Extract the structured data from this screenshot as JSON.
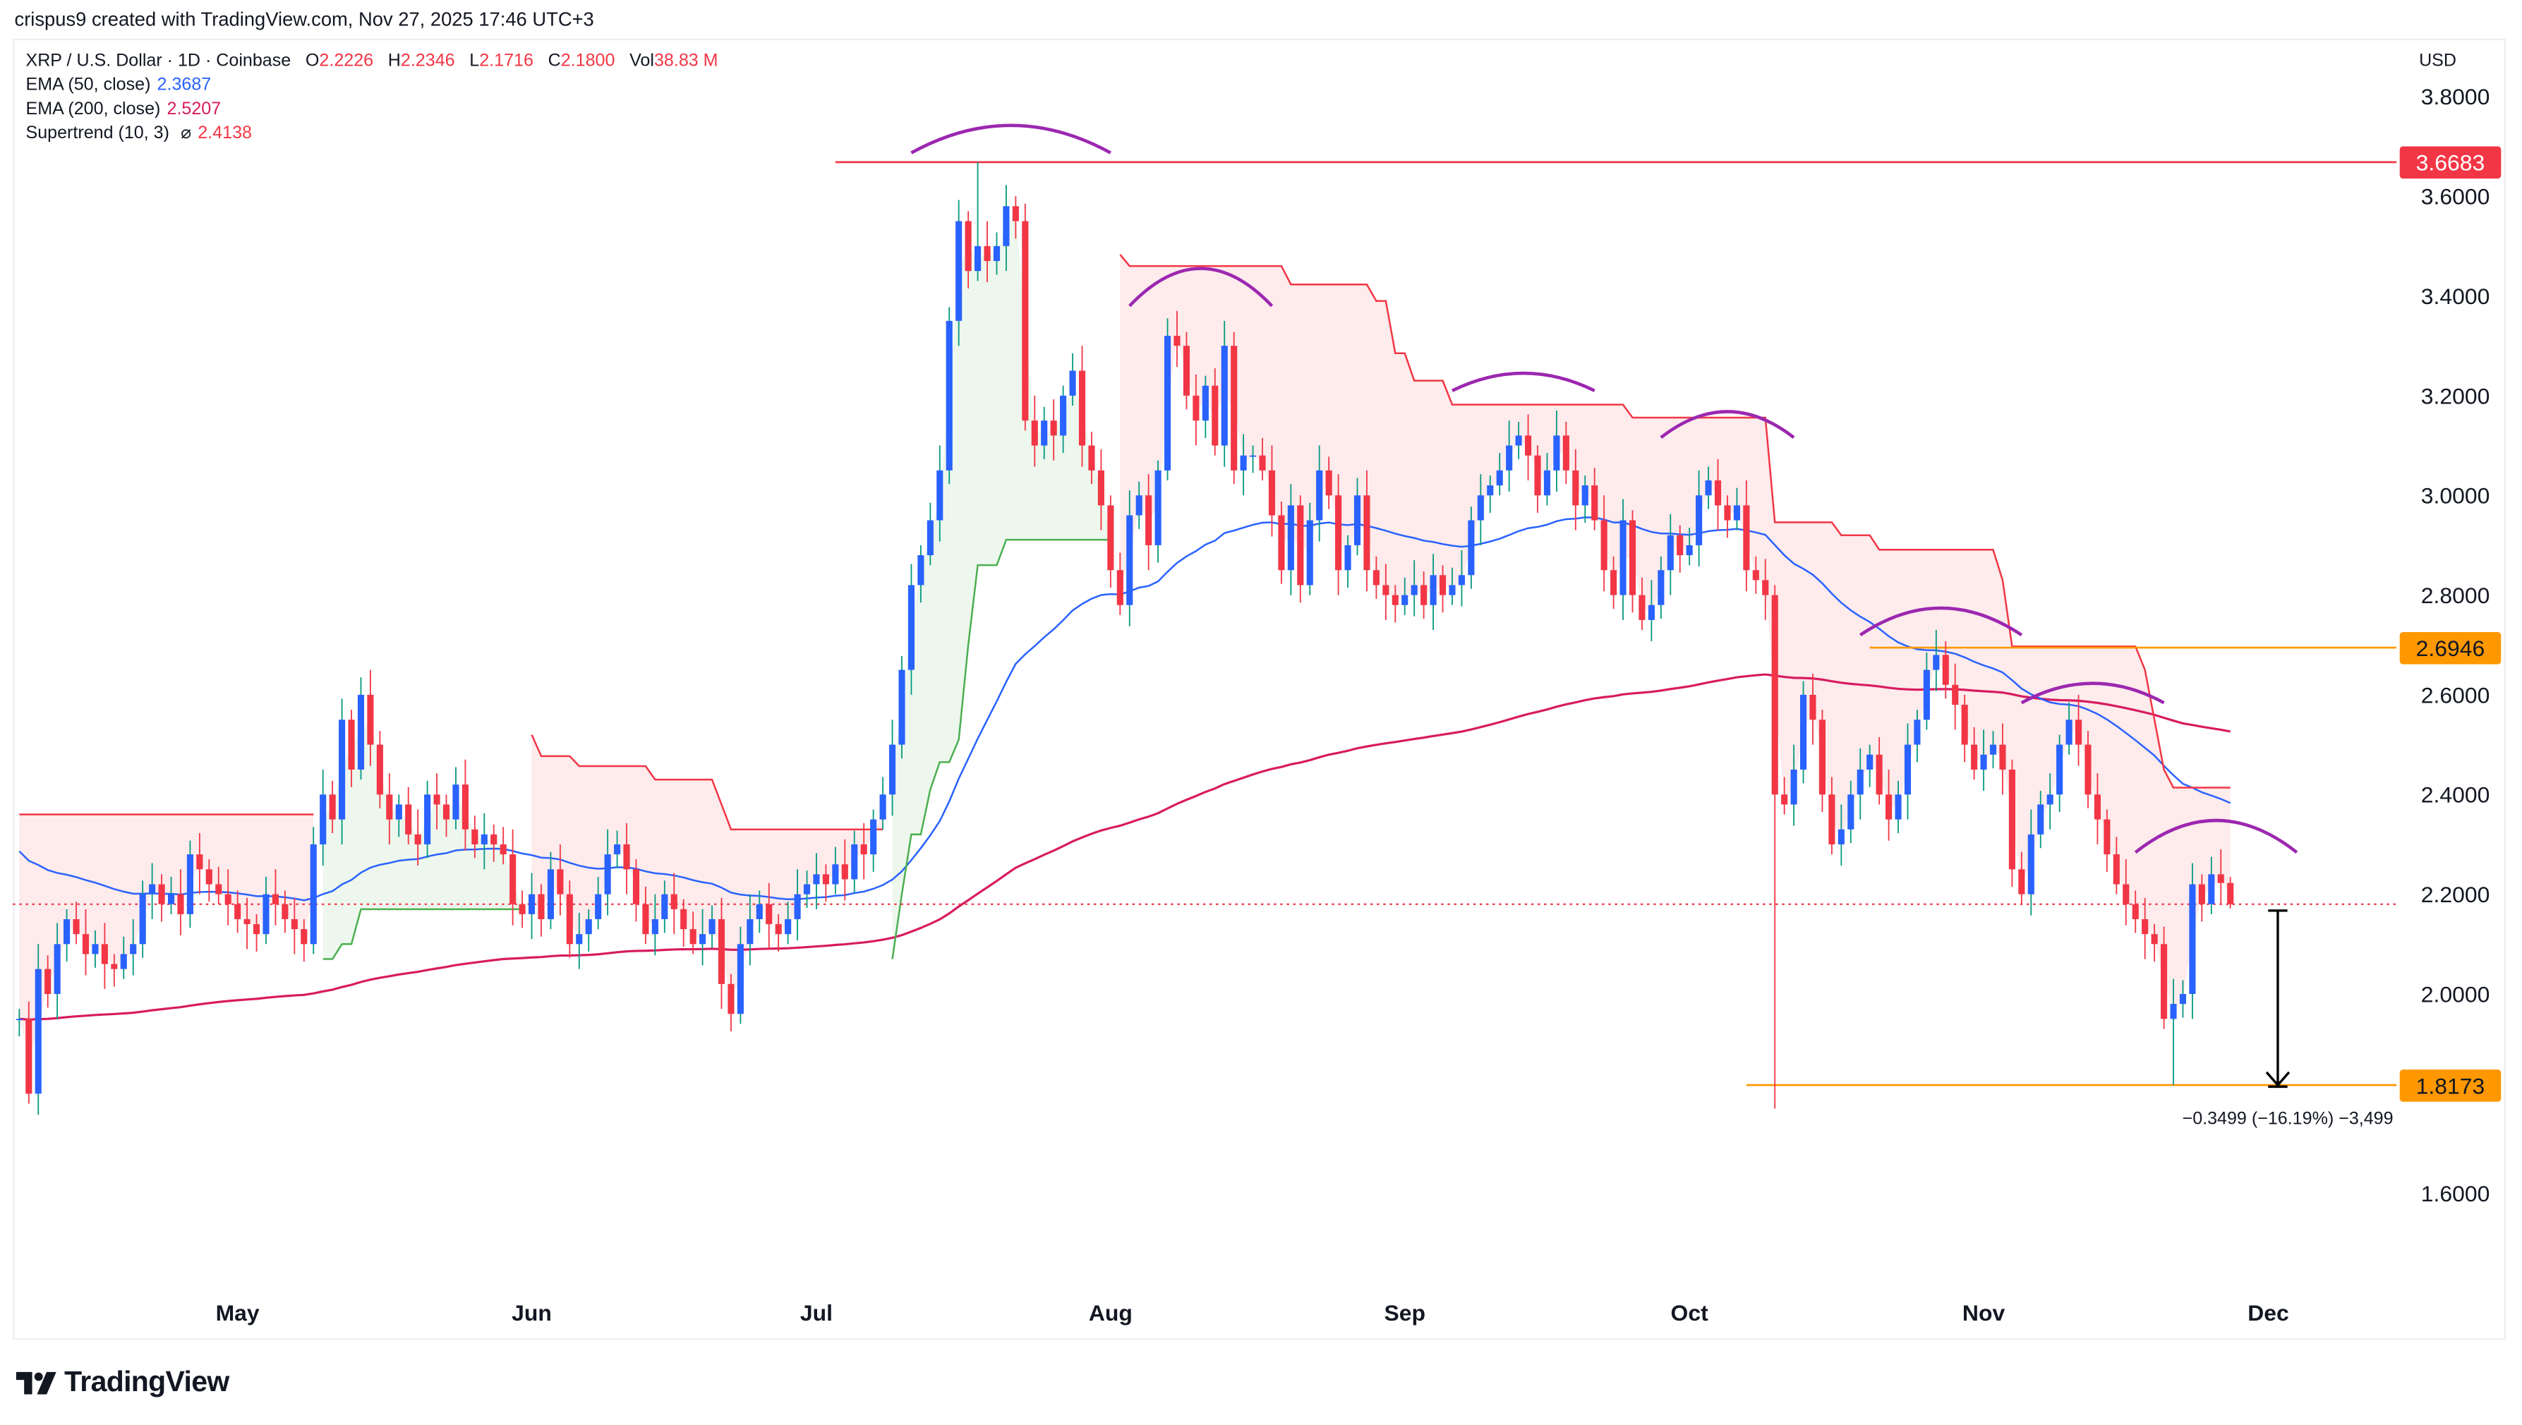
{
  "watermark": "crispus9 created with TradingView.com, Nov 27, 2025 17:46 UTC+3",
  "legend": {
    "symbol": "XRP / U.S. Dollar · 1D · Coinbase",
    "o_label": "O",
    "o": "2.2226",
    "h_label": "H",
    "h": "2.2346",
    "l_label": "L",
    "l": "2.1716",
    "c_label": "C",
    "c": "2.1800",
    "vol_label": "Vol",
    "vol": "38.83 M",
    "value_color": "#f23645"
  },
  "indicators": [
    {
      "label": "EMA (50, close)",
      "value": "2.3687",
      "color": "#2962ff"
    },
    {
      "label": "EMA (200, close)",
      "value": "2.5207",
      "color": "#d81b60"
    },
    {
      "label": "Supertrend (10, 3)",
      "icon": "⌀",
      "value": "2.4138",
      "color": "#f23645"
    }
  ],
  "price_axis": {
    "currency": "USD",
    "ticks": [
      "3.8000",
      "3.6000",
      "3.4000",
      "3.2000",
      "3.0000",
      "2.8000",
      "2.6000",
      "2.4000",
      "2.2000",
      "2.0000",
      "1.6000"
    ],
    "tags": [
      {
        "value": "3.6683",
        "color": "#f23645",
        "text_color": "#ffffff"
      },
      {
        "value": "2.6946",
        "color": "#ff9800",
        "text_color": "#131722"
      },
      {
        "value": "1.8173",
        "color": "#ff9800",
        "text_color": "#131722"
      }
    ]
  },
  "time_axis": [
    {
      "label": "May",
      "date": "2025-05-01"
    },
    {
      "label": "Jun",
      "date": "2025-06-01"
    },
    {
      "label": "Jul",
      "date": "2025-07-01"
    },
    {
      "label": "Aug",
      "date": "2025-08-01"
    },
    {
      "label": "Sep",
      "date": "2025-09-01"
    },
    {
      "label": "Oct",
      "date": "2025-10-01"
    },
    {
      "label": "Nov",
      "date": "2025-11-01"
    },
    {
      "label": "Dec",
      "date": "2025-12-01"
    }
  ],
  "logo": "TradingView",
  "chart_data": {
    "type": "candlestick",
    "symbol": "XRP / U.S. Dollar",
    "interval": "1D",
    "start_date": "2025-04-08",
    "ylim": [
      1.45,
      3.87
    ],
    "up_color": "#2962ff",
    "up_wick_color": "#089981",
    "down_color": "#f23645",
    "close": [
      1.95,
      1.8,
      2.05,
      2.0,
      2.1,
      2.15,
      2.12,
      2.08,
      2.1,
      2.06,
      2.05,
      2.08,
      2.1,
      2.2,
      2.22,
      2.18,
      2.2,
      2.16,
      2.28,
      2.25,
      2.22,
      2.2,
      2.18,
      2.15,
      2.14,
      2.12,
      2.2,
      2.18,
      2.15,
      2.13,
      2.1,
      2.3,
      2.4,
      2.35,
      2.55,
      2.45,
      2.6,
      2.5,
      2.4,
      2.35,
      2.38,
      2.32,
      2.3,
      2.4,
      2.38,
      2.35,
      2.42,
      2.33,
      2.3,
      2.32,
      2.3,
      2.28,
      2.18,
      2.16,
      2.2,
      2.15,
      2.25,
      2.2,
      2.1,
      2.12,
      2.15,
      2.2,
      2.28,
      2.3,
      2.25,
      2.18,
      2.12,
      2.15,
      2.2,
      2.17,
      2.13,
      2.1,
      2.12,
      2.15,
      2.02,
      1.96,
      2.1,
      2.15,
      2.18,
      2.14,
      2.12,
      2.15,
      2.2,
      2.22,
      2.24,
      2.22,
      2.26,
      2.23,
      2.3,
      2.28,
      2.35,
      2.4,
      2.5,
      2.65,
      2.82,
      2.88,
      2.95,
      3.05,
      3.35,
      3.55,
      3.45,
      3.5,
      3.47,
      3.5,
      3.58,
      3.55,
      3.15,
      3.1,
      3.15,
      3.12,
      3.2,
      3.25,
      3.1,
      3.05,
      2.98,
      2.85,
      2.78,
      2.96,
      3.0,
      2.9,
      3.05,
      3.32,
      3.3,
      3.2,
      3.15,
      3.22,
      3.1,
      3.3,
      3.05,
      3.08,
      3.08,
      3.05,
      2.96,
      2.85,
      2.98,
      2.82,
      2.95,
      3.05,
      3.0,
      2.85,
      2.9,
      3.0,
      2.85,
      2.82,
      2.8,
      2.78,
      2.8,
      2.82,
      2.78,
      2.84,
      2.8,
      2.82,
      2.84,
      2.95,
      3.0,
      3.02,
      3.05,
      3.1,
      3.12,
      3.08,
      3.0,
      3.05,
      3.12,
      3.05,
      2.98,
      3.02,
      2.95,
      2.85,
      2.8,
      2.95,
      2.8,
      2.75,
      2.78,
      2.85,
      2.92,
      2.88,
      2.9,
      3.0,
      3.03,
      2.98,
      2.95,
      2.98,
      2.85,
      2.83,
      2.8,
      2.4,
      2.38,
      2.45,
      2.6,
      2.55,
      2.4,
      2.3,
      2.33,
      2.4,
      2.45,
      2.48,
      2.4,
      2.35,
      2.4,
      2.5,
      2.55,
      2.65,
      2.68,
      2.62,
      2.58,
      2.5,
      2.45,
      2.48,
      2.5,
      2.45,
      2.25,
      2.2,
      2.32,
      2.38,
      2.4,
      2.5,
      2.55,
      2.5,
      2.4,
      2.35,
      2.28,
      2.22,
      2.18,
      2.15,
      2.12,
      2.1,
      1.95,
      1.98,
      2.0,
      2.22,
      2.18,
      2.24,
      2.2226,
      2.18
    ],
    "extremes": [
      {
        "date": "2025-07-18",
        "high": 3.6683
      },
      {
        "date": "2025-10-10",
        "low": 1.77
      },
      {
        "date": "2025-11-21",
        "low": 1.8173
      }
    ],
    "ema50": {
      "name": "EMA (50, close)",
      "color": "#2962ff",
      "value_at_start": 2.3
    },
    "ema200": {
      "name": "EMA (200, close)",
      "color": "#d81b60",
      "value_at_start": 1.95
    },
    "supertrend": {
      "name": "Supertrend (10, 3)",
      "up_color": "#4caf50",
      "down_color": "#f23645",
      "steps": [
        {
          "date": "2025-04-08",
          "value": 2.36,
          "trend": "down"
        },
        {
          "date": "2025-05-10",
          "value": 2.07,
          "trend": "up"
        },
        {
          "date": "2025-05-12",
          "value": 2.1,
          "trend": "up"
        },
        {
          "date": "2025-05-14",
          "value": 2.17,
          "trend": "up"
        },
        {
          "date": "2025-06-01",
          "value": 2.52,
          "trend": "down"
        },
        {
          "date": "2025-06-02",
          "value": 2.477,
          "trend": "down"
        },
        {
          "date": "2025-06-06",
          "value": 2.457,
          "trend": "down"
        },
        {
          "date": "2025-06-14",
          "value": 2.43,
          "trend": "down"
        },
        {
          "date": "2025-06-21",
          "value": 2.38,
          "trend": "down"
        },
        {
          "date": "2025-06-22",
          "value": 2.33,
          "trend": "down"
        },
        {
          "date": "2025-07-09",
          "value": 2.07,
          "trend": "up"
        },
        {
          "date": "2025-07-10",
          "value": 2.2,
          "trend": "up"
        },
        {
          "date": "2025-07-11",
          "value": 2.32,
          "trend": "up"
        },
        {
          "date": "2025-07-13",
          "value": 2.41,
          "trend": "up"
        },
        {
          "date": "2025-07-14",
          "value": 2.465,
          "trend": "up"
        },
        {
          "date": "2025-07-16",
          "value": 2.51,
          "trend": "up"
        },
        {
          "date": "2025-07-17",
          "value": 2.7,
          "trend": "up"
        },
        {
          "date": "2025-07-18",
          "value": 2.86,
          "trend": "up"
        },
        {
          "date": "2025-07-21",
          "value": 2.911,
          "trend": "up"
        },
        {
          "date": "2025-08-02",
          "value": 3.483,
          "trend": "down"
        },
        {
          "date": "2025-08-03",
          "value": 3.46,
          "trend": "down"
        },
        {
          "date": "2025-08-20",
          "value": 3.423,
          "trend": "down"
        },
        {
          "date": "2025-08-29",
          "value": 3.39,
          "trend": "down"
        },
        {
          "date": "2025-08-31",
          "value": 3.285,
          "trend": "down"
        },
        {
          "date": "2025-09-02",
          "value": 3.23,
          "trend": "down"
        },
        {
          "date": "2025-09-06",
          "value": 3.182,
          "trend": "down"
        },
        {
          "date": "2025-09-25",
          "value": 3.156,
          "trend": "down"
        },
        {
          "date": "2025-10-10",
          "value": 2.946,
          "trend": "down"
        },
        {
          "date": "2025-10-17",
          "value": 2.92,
          "trend": "down"
        },
        {
          "date": "2025-10-21",
          "value": 2.891,
          "trend": "down"
        },
        {
          "date": "2025-11-03",
          "value": 2.83,
          "trend": "down"
        },
        {
          "date": "2025-11-04",
          "value": 2.697,
          "trend": "down"
        },
        {
          "date": "2025-11-18",
          "value": 2.65,
          "trend": "down"
        },
        {
          "date": "2025-11-19",
          "value": 2.55,
          "trend": "down"
        },
        {
          "date": "2025-11-20",
          "value": 2.45,
          "trend": "down"
        },
        {
          "date": "2025-11-21",
          "value": 2.4138,
          "trend": "down"
        }
      ]
    },
    "current_price": 2.18,
    "horizontal_lines": [
      {
        "value": 3.6683,
        "from": "2025-07-03",
        "color": "#f23645"
      },
      {
        "value": 2.6946,
        "from": "2025-10-20",
        "color": "#ff9800"
      },
      {
        "value": 1.8173,
        "from": "2025-10-07",
        "color": "#ff9800"
      }
    ],
    "arcs": [
      {
        "start": "2025-07-11",
        "end": "2025-08-01",
        "ends_price": 3.687,
        "peak": 3.742
      },
      {
        "start": "2025-08-03",
        "end": "2025-08-18",
        "ends_price": 3.38,
        "peak": 3.455
      },
      {
        "start": "2025-09-06",
        "end": "2025-09-21",
        "ends_price": 3.21,
        "peak": 3.245
      },
      {
        "start": "2025-09-28",
        "end": "2025-10-12",
        "ends_price": 3.116,
        "peak": 3.168
      },
      {
        "start": "2025-10-19",
        "end": "2025-11-05",
        "ends_price": 2.72,
        "peak": 2.774
      },
      {
        "start": "2025-11-05",
        "end": "2025-11-20",
        "ends_price": 2.584,
        "peak": 2.623
      },
      {
        "start": "2025-11-17",
        "end": "2025-12-04",
        "ends_price": 2.284,
        "peak": 2.348
      }
    ],
    "arc_color": "#9c27b0",
    "measure": {
      "date": "2025-12-02",
      "from": 2.1672,
      "to": 1.8173,
      "label": "−0.3499 (−16.19%) −3,499"
    }
  }
}
